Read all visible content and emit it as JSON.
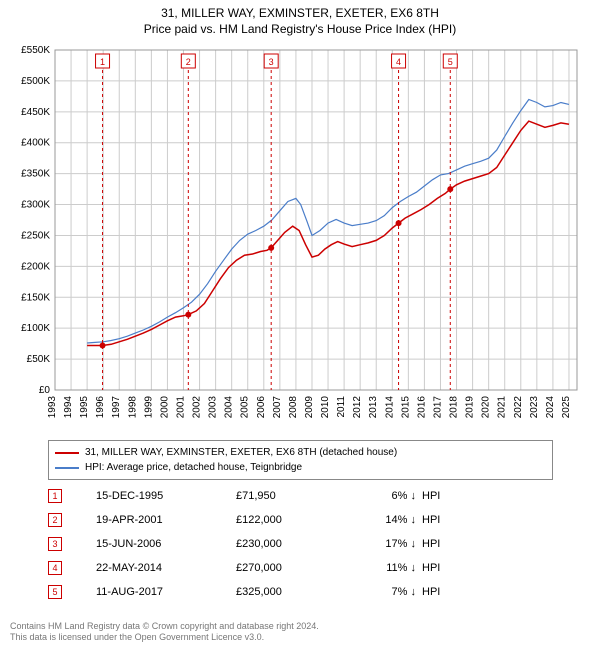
{
  "title_main": "31, MILLER WAY, EXMINSTER, EXETER, EX6 8TH",
  "title_sub": "Price paid vs. HM Land Registry's House Price Index (HPI)",
  "chart": {
    "type": "line",
    "background_color": "#ffffff",
    "plot_border_color": "#999999",
    "grid_color": "#cccccc",
    "font_family": "Arial",
    "x_years": [
      1993,
      1994,
      1995,
      1996,
      1997,
      1998,
      1999,
      2000,
      2001,
      2002,
      2003,
      2004,
      2005,
      2006,
      2007,
      2008,
      2009,
      2010,
      2011,
      2012,
      2013,
      2014,
      2015,
      2016,
      2017,
      2018,
      2019,
      2020,
      2021,
      2022,
      2023,
      2024,
      2025
    ],
    "xlim": [
      1993,
      2025.5
    ],
    "x_tick_fontsize": 10,
    "x_tick_rotation": -90,
    "ylim": [
      0,
      550000
    ],
    "y_tick_step": 50000,
    "y_tick_labels": [
      "£0",
      "£50K",
      "£100K",
      "£150K",
      "£200K",
      "£250K",
      "£300K",
      "£350K",
      "£400K",
      "£450K",
      "£500K",
      "£550K"
    ],
    "y_tick_fontsize": 10,
    "y_tick_color": "#000000",
    "series": [
      {
        "name": "price_paid",
        "label": "31, MILLER WAY, EXMINSTER, EXETER, EX6 8TH (detached house)",
        "color": "#cc0000",
        "line_width": 1.5,
        "data": [
          [
            1995.0,
            72000
          ],
          [
            1995.96,
            71950
          ],
          [
            1996.5,
            74000
          ],
          [
            1997.0,
            78000
          ],
          [
            1997.5,
            82000
          ],
          [
            1998.0,
            87000
          ],
          [
            1998.5,
            92000
          ],
          [
            1999.0,
            98000
          ],
          [
            1999.5,
            105000
          ],
          [
            2000.0,
            112000
          ],
          [
            2000.5,
            118000
          ],
          [
            2001.0,
            120000
          ],
          [
            2001.3,
            122000
          ],
          [
            2001.8,
            128000
          ],
          [
            2002.3,
            140000
          ],
          [
            2002.8,
            160000
          ],
          [
            2003.3,
            180000
          ],
          [
            2003.8,
            198000
          ],
          [
            2004.3,
            210000
          ],
          [
            2004.8,
            218000
          ],
          [
            2005.3,
            220000
          ],
          [
            2005.8,
            224000
          ],
          [
            2006.2,
            226000
          ],
          [
            2006.46,
            230000
          ],
          [
            2006.8,
            240000
          ],
          [
            2007.3,
            255000
          ],
          [
            2007.8,
            265000
          ],
          [
            2008.2,
            258000
          ],
          [
            2008.6,
            235000
          ],
          [
            2009.0,
            215000
          ],
          [
            2009.4,
            218000
          ],
          [
            2009.8,
            228000
          ],
          [
            2010.2,
            235000
          ],
          [
            2010.6,
            240000
          ],
          [
            2011.0,
            236000
          ],
          [
            2011.5,
            232000
          ],
          [
            2012.0,
            235000
          ],
          [
            2012.5,
            238000
          ],
          [
            2013.0,
            242000
          ],
          [
            2013.5,
            250000
          ],
          [
            2014.0,
            262000
          ],
          [
            2014.39,
            270000
          ],
          [
            2014.8,
            278000
          ],
          [
            2015.3,
            285000
          ],
          [
            2015.8,
            292000
          ],
          [
            2016.3,
            300000
          ],
          [
            2016.8,
            310000
          ],
          [
            2017.3,
            318000
          ],
          [
            2017.61,
            325000
          ],
          [
            2018.0,
            332000
          ],
          [
            2018.5,
            338000
          ],
          [
            2019.0,
            342000
          ],
          [
            2019.5,
            346000
          ],
          [
            2020.0,
            350000
          ],
          [
            2020.5,
            360000
          ],
          [
            2021.0,
            380000
          ],
          [
            2021.5,
            400000
          ],
          [
            2022.0,
            420000
          ],
          [
            2022.5,
            435000
          ],
          [
            2023.0,
            430000
          ],
          [
            2023.5,
            425000
          ],
          [
            2024.0,
            428000
          ],
          [
            2024.5,
            432000
          ],
          [
            2025.0,
            430000
          ]
        ]
      },
      {
        "name": "hpi",
        "label": "HPI: Average price, detached house, Teignbridge",
        "color": "#4a7dc9",
        "line_width": 1.2,
        "data": [
          [
            1995.0,
            76000
          ],
          [
            1995.5,
            77000
          ],
          [
            1996.0,
            78000
          ],
          [
            1996.5,
            80000
          ],
          [
            1997.0,
            83000
          ],
          [
            1997.5,
            87000
          ],
          [
            1998.0,
            92000
          ],
          [
            1998.5,
            97000
          ],
          [
            1999.0,
            103000
          ],
          [
            1999.5,
            110000
          ],
          [
            2000.0,
            118000
          ],
          [
            2000.5,
            125000
          ],
          [
            2001.0,
            133000
          ],
          [
            2001.5,
            142000
          ],
          [
            2002.0,
            155000
          ],
          [
            2002.5,
            172000
          ],
          [
            2003.0,
            192000
          ],
          [
            2003.5,
            210000
          ],
          [
            2004.0,
            228000
          ],
          [
            2004.5,
            242000
          ],
          [
            2005.0,
            252000
          ],
          [
            2005.5,
            258000
          ],
          [
            2006.0,
            265000
          ],
          [
            2006.5,
            275000
          ],
          [
            2007.0,
            290000
          ],
          [
            2007.5,
            305000
          ],
          [
            2008.0,
            310000
          ],
          [
            2008.3,
            300000
          ],
          [
            2008.7,
            272000
          ],
          [
            2009.0,
            250000
          ],
          [
            2009.5,
            258000
          ],
          [
            2010.0,
            270000
          ],
          [
            2010.5,
            276000
          ],
          [
            2011.0,
            270000
          ],
          [
            2011.5,
            266000
          ],
          [
            2012.0,
            268000
          ],
          [
            2012.5,
            270000
          ],
          [
            2013.0,
            274000
          ],
          [
            2013.5,
            282000
          ],
          [
            2014.0,
            295000
          ],
          [
            2014.5,
            305000
          ],
          [
            2015.0,
            313000
          ],
          [
            2015.5,
            320000
          ],
          [
            2016.0,
            330000
          ],
          [
            2016.5,
            340000
          ],
          [
            2017.0,
            348000
          ],
          [
            2017.5,
            350000
          ],
          [
            2018.0,
            356000
          ],
          [
            2018.5,
            362000
          ],
          [
            2019.0,
            366000
          ],
          [
            2019.5,
            370000
          ],
          [
            2020.0,
            375000
          ],
          [
            2020.5,
            388000
          ],
          [
            2021.0,
            410000
          ],
          [
            2021.5,
            432000
          ],
          [
            2022.0,
            452000
          ],
          [
            2022.5,
            470000
          ],
          [
            2023.0,
            465000
          ],
          [
            2023.5,
            458000
          ],
          [
            2024.0,
            460000
          ],
          [
            2024.5,
            465000
          ],
          [
            2025.0,
            462000
          ]
        ]
      }
    ],
    "sale_markers": [
      {
        "n": "1",
        "x": 1995.96,
        "y": 71950
      },
      {
        "n": "2",
        "x": 2001.3,
        "y": 122000
      },
      {
        "n": "3",
        "x": 2006.46,
        "y": 230000
      },
      {
        "n": "4",
        "x": 2014.39,
        "y": 270000
      },
      {
        "n": "5",
        "x": 2017.61,
        "y": 325000
      }
    ],
    "marker_box_border": "#cc0000",
    "marker_text_color": "#cc0000",
    "marker_line_color": "#cc0000",
    "marker_line_dash": "3,3",
    "marker_dot_fill": "#cc0000"
  },
  "legend": {
    "border_color": "#888888",
    "fontsize": 10
  },
  "sales": [
    {
      "n": "1",
      "date": "15-DEC-1995",
      "price": "£71,950",
      "diff": "6%",
      "arrow": "↓",
      "hpi": "HPI"
    },
    {
      "n": "2",
      "date": "19-APR-2001",
      "price": "£122,000",
      "diff": "14%",
      "arrow": "↓",
      "hpi": "HPI"
    },
    {
      "n": "3",
      "date": "15-JUN-2006",
      "price": "£230,000",
      "diff": "17%",
      "arrow": "↓",
      "hpi": "HPI"
    },
    {
      "n": "4",
      "date": "22-MAY-2014",
      "price": "£270,000",
      "diff": "11%",
      "arrow": "↓",
      "hpi": "HPI"
    },
    {
      "n": "5",
      "date": "11-AUG-2017",
      "price": "£325,000",
      "diff": "7%",
      "arrow": "↓",
      "hpi": "HPI"
    }
  ],
  "footer_line1": "Contains HM Land Registry data © Crown copyright and database right 2024.",
  "footer_line2": "This data is licensed under the Open Government Licence v3.0."
}
